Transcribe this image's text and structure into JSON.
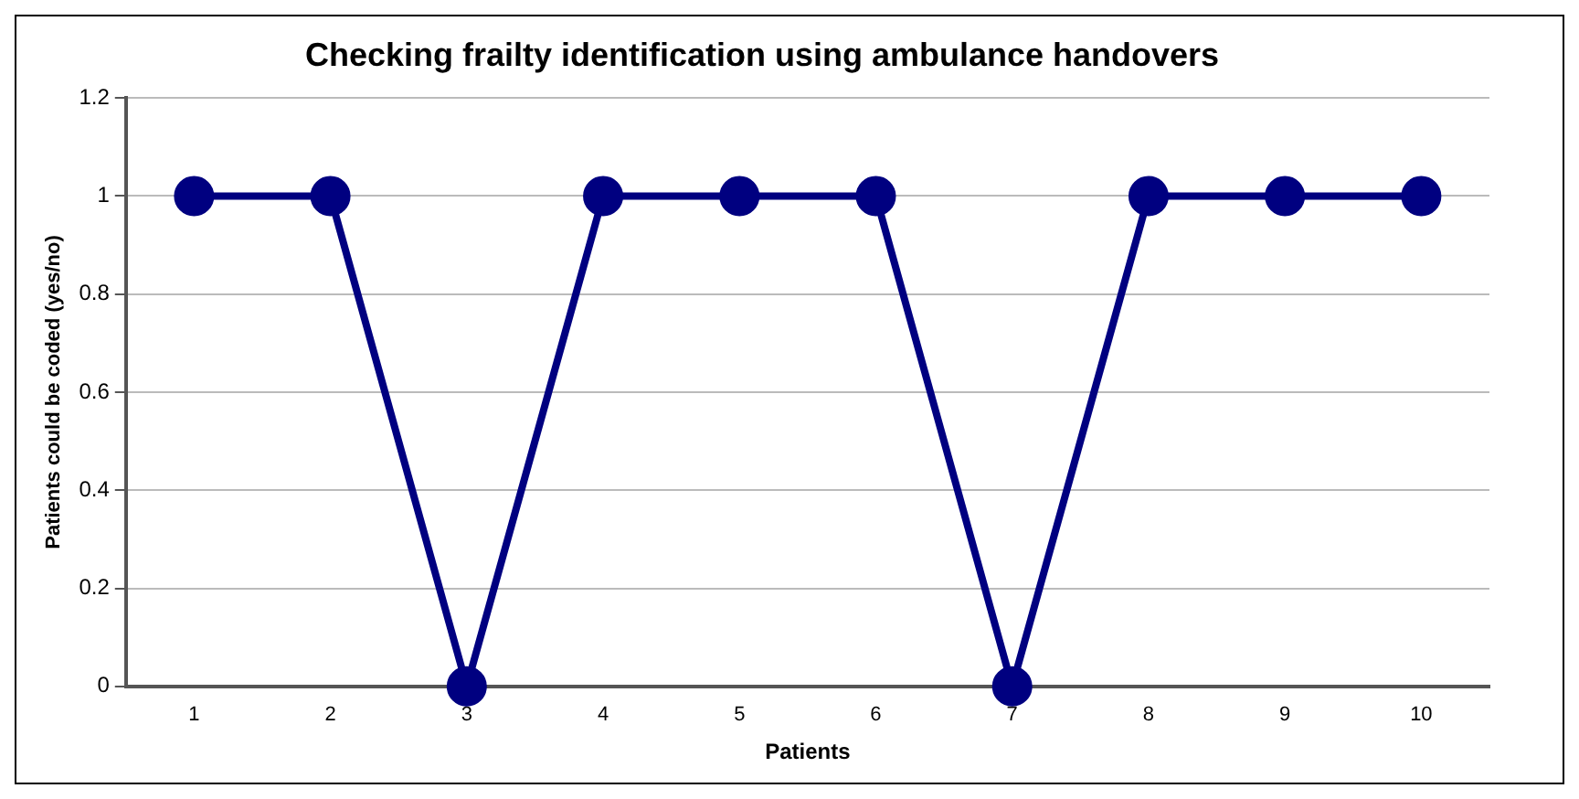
{
  "chart_data": {
    "type": "line",
    "title": "Checking frailty identification using ambulance handovers",
    "xlabel": "Patients",
    "ylabel": "Patients could be coded (yes/no)",
    "categories": [
      "1",
      "2",
      "3",
      "4",
      "5",
      "6",
      "7",
      "8",
      "9",
      "10"
    ],
    "series": [
      {
        "color": "#000080",
        "values": [
          1,
          1,
          0,
          1,
          1,
          1,
          0,
          1,
          1,
          1
        ]
      }
    ],
    "ylim": [
      0,
      1.2
    ],
    "yticks": [
      0,
      0.2,
      0.4,
      0.6,
      0.8,
      1,
      1.2
    ],
    "grid": "y",
    "legend": false,
    "marker": "circle",
    "line_style": "solid"
  }
}
